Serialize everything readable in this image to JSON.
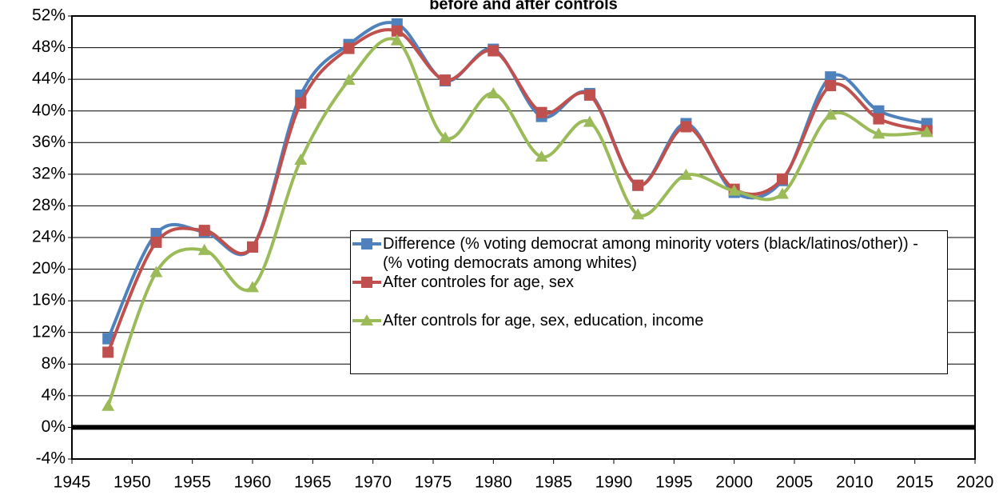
{
  "chart_data": {
    "type": "line",
    "title": "before and after controls",
    "x": [
      1948,
      1952,
      1956,
      1960,
      1964,
      1968,
      1972,
      1976,
      1980,
      1984,
      1988,
      1992,
      1996,
      2000,
      2004,
      2008,
      2012,
      2016
    ],
    "series": [
      {
        "name": "Difference (% voting democrat among minority voters (black/latinos/other)) - (% voting democrats among whites)",
        "color": "#4f81bd",
        "marker": "square",
        "values": [
          11.2,
          24.5,
          24.7,
          22.8,
          42,
          48.4,
          51,
          43.8,
          47.8,
          39.3,
          42.2,
          30.6,
          38.4,
          29.7,
          31.2,
          44.3,
          40,
          38.4
        ]
      },
      {
        "name": "After controles for age, sex",
        "color": "#c0504d",
        "marker": "square",
        "values": [
          9.5,
          23.4,
          24.9,
          22.8,
          41,
          47.9,
          50.1,
          43.9,
          47.6,
          39.8,
          42,
          30.6,
          38,
          30.1,
          31.4,
          43.2,
          39,
          37.5
        ]
      },
      {
        "name": "After controls for age, sex, education, income",
        "color": "#9bbb59",
        "marker": "triangle",
        "values": [
          2.7,
          19.6,
          22.4,
          17.7,
          33.8,
          43.9,
          48.9,
          36.6,
          42.2,
          34.2,
          38.6,
          26.9,
          31.9,
          29.9,
          29.5,
          39.5,
          37.1,
          37.3
        ]
      }
    ],
    "xlim": [
      1945,
      2020
    ],
    "xticks": [
      1945,
      1950,
      1955,
      1960,
      1965,
      1970,
      1975,
      1980,
      1985,
      1990,
      1995,
      2000,
      2005,
      2010,
      2015,
      2020
    ],
    "ylim": [
      -4,
      52
    ],
    "yticks": [
      {
        "value": -4,
        "label": "-4%"
      },
      {
        "value": 0,
        "label": "0%"
      },
      {
        "value": 4,
        "label": "4%"
      },
      {
        "value": 8,
        "label": "8%"
      },
      {
        "value": 12,
        "label": "12%"
      },
      {
        "value": 16,
        "label": "16%"
      },
      {
        "value": 20,
        "label": "20%"
      },
      {
        "value": 24,
        "label": "24%"
      },
      {
        "value": 28,
        "label": "28%"
      },
      {
        "value": 32,
        "label": "32%"
      },
      {
        "value": 36,
        "label": "36%"
      },
      {
        "value": 40,
        "label": "40%"
      },
      {
        "value": 44,
        "label": "44%"
      },
      {
        "value": 48,
        "label": "48%"
      },
      {
        "value": 52,
        "label": "52%"
      }
    ],
    "grid": true,
    "smooth": true
  }
}
